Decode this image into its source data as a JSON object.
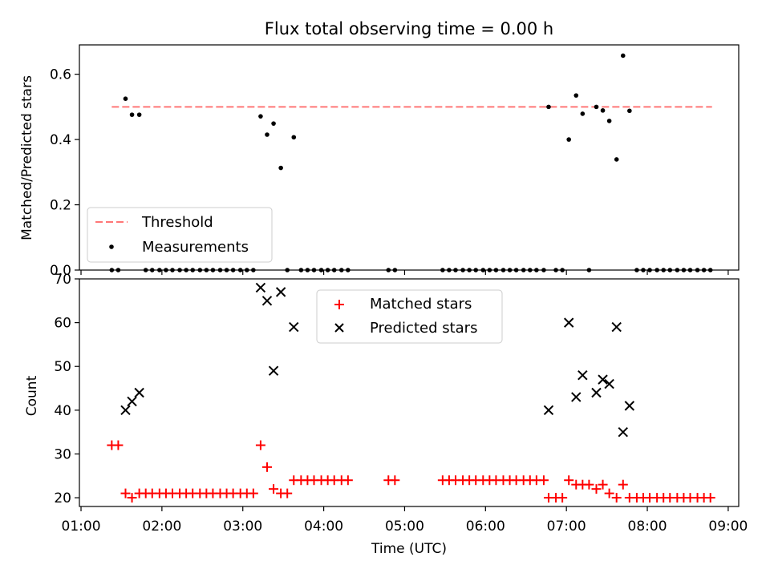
{
  "chart_data": [
    {
      "type": "scatter",
      "title": "Flux total observing time = 0.00 h",
      "ylabel": "Matched/Predicted stars",
      "xlabel": "",
      "xlim_hours": [
        0.98,
        9.13
      ],
      "ylim": [
        0,
        0.69
      ],
      "yticks": [
        0.0,
        0.2,
        0.4,
        0.6
      ],
      "ytick_labels": [
        "0.0",
        "0.2",
        "0.4",
        "0.6"
      ],
      "legend_position": "lower-left",
      "legend": [
        "Threshold",
        "Measurements"
      ],
      "threshold": {
        "name": "Threshold",
        "value": 0.5,
        "x_range_hours": [
          1.38,
          8.8
        ],
        "color": "#ff7777"
      },
      "measurements": {
        "name": "Measurements",
        "color": "#000000",
        "points": [
          [
            1.38,
            0.0
          ],
          [
            1.46,
            0.0
          ],
          [
            1.55,
            0.525
          ],
          [
            1.63,
            0.476
          ],
          [
            1.72,
            0.476
          ],
          [
            1.8,
            0.0
          ],
          [
            1.88,
            0.0
          ],
          [
            1.97,
            0.0
          ],
          [
            2.05,
            0.0
          ],
          [
            2.13,
            0.0
          ],
          [
            2.22,
            0.0
          ],
          [
            2.3,
            0.0
          ],
          [
            2.38,
            0.0
          ],
          [
            2.47,
            0.0
          ],
          [
            2.55,
            0.0
          ],
          [
            2.63,
            0.0
          ],
          [
            2.72,
            0.0
          ],
          [
            2.8,
            0.0
          ],
          [
            2.88,
            0.0
          ],
          [
            2.97,
            0.0
          ],
          [
            3.05,
            0.0
          ],
          [
            3.13,
            0.0
          ],
          [
            3.22,
            0.471
          ],
          [
            3.3,
            0.415
          ],
          [
            3.38,
            0.449
          ],
          [
            3.47,
            0.313
          ],
          [
            3.55,
            0.0
          ],
          [
            3.63,
            0.407
          ],
          [
            3.72,
            0.0
          ],
          [
            3.8,
            0.0
          ],
          [
            3.88,
            0.0
          ],
          [
            3.97,
            0.0
          ],
          [
            4.05,
            0.0
          ],
          [
            4.13,
            0.0
          ],
          [
            4.22,
            0.0
          ],
          [
            4.3,
            0.0
          ],
          [
            4.8,
            0.0
          ],
          [
            4.88,
            0.0
          ],
          [
            5.47,
            0.0
          ],
          [
            5.55,
            0.0
          ],
          [
            5.63,
            0.0
          ],
          [
            5.72,
            0.0
          ],
          [
            5.8,
            0.0
          ],
          [
            5.88,
            0.0
          ],
          [
            5.97,
            0.0
          ],
          [
            6.05,
            0.0
          ],
          [
            6.13,
            0.0
          ],
          [
            6.22,
            0.0
          ],
          [
            6.3,
            0.0
          ],
          [
            6.38,
            0.0
          ],
          [
            6.47,
            0.0
          ],
          [
            6.55,
            0.0
          ],
          [
            6.63,
            0.0
          ],
          [
            6.72,
            0.0
          ],
          [
            6.78,
            0.5
          ],
          [
            6.87,
            0.0
          ],
          [
            6.95,
            0.0
          ],
          [
            7.03,
            0.4
          ],
          [
            7.12,
            0.535
          ],
          [
            7.2,
            0.479
          ],
          [
            7.28,
            0.0
          ],
          [
            7.37,
            0.5
          ],
          [
            7.45,
            0.489
          ],
          [
            7.53,
            0.457
          ],
          [
            7.62,
            0.339
          ],
          [
            7.7,
            0.657
          ],
          [
            7.78,
            0.488
          ],
          [
            7.87,
            0.0
          ],
          [
            7.95,
            0.0
          ],
          [
            8.03,
            0.0
          ],
          [
            8.12,
            0.0
          ],
          [
            8.2,
            0.0
          ],
          [
            8.28,
            0.0
          ],
          [
            8.37,
            0.0
          ],
          [
            8.45,
            0.0
          ],
          [
            8.53,
            0.0
          ],
          [
            8.62,
            0.0
          ],
          [
            8.7,
            0.0
          ],
          [
            8.78,
            0.0
          ]
        ]
      }
    },
    {
      "type": "scatter",
      "title": "",
      "xlabel": "Time (UTC)",
      "ylabel": "Count",
      "xlim_hours": [
        0.98,
        9.13
      ],
      "ylim": [
        18,
        70
      ],
      "yticks": [
        20,
        30,
        40,
        50,
        60,
        70
      ],
      "ytick_labels": [
        "20",
        "30",
        "40",
        "50",
        "60",
        "70"
      ],
      "xticks_hours": [
        1,
        2,
        3,
        4,
        5,
        6,
        7,
        8,
        9
      ],
      "xtick_labels": [
        "01:00",
        "02:00",
        "03:00",
        "04:00",
        "05:00",
        "06:00",
        "07:00",
        "08:00",
        "09:00"
      ],
      "legend_position": "top-center",
      "legend": [
        "Matched stars",
        "Predicted stars"
      ],
      "series": [
        {
          "name": "Matched stars",
          "marker": "plus",
          "color": "#ff0000",
          "points": [
            [
              1.38,
              32
            ],
            [
              1.46,
              32
            ],
            [
              1.55,
              21
            ],
            [
              1.63,
              20
            ],
            [
              1.72,
              21
            ],
            [
              1.8,
              21
            ],
            [
              1.88,
              21
            ],
            [
              1.97,
              21
            ],
            [
              2.05,
              21
            ],
            [
              2.13,
              21
            ],
            [
              2.22,
              21
            ],
            [
              2.3,
              21
            ],
            [
              2.38,
              21
            ],
            [
              2.47,
              21
            ],
            [
              2.55,
              21
            ],
            [
              2.63,
              21
            ],
            [
              2.72,
              21
            ],
            [
              2.8,
              21
            ],
            [
              2.88,
              21
            ],
            [
              2.97,
              21
            ],
            [
              3.05,
              21
            ],
            [
              3.13,
              21
            ],
            [
              3.22,
              32
            ],
            [
              3.3,
              27
            ],
            [
              3.38,
              22
            ],
            [
              3.47,
              21
            ],
            [
              3.55,
              21
            ],
            [
              3.63,
              24
            ],
            [
              3.72,
              24
            ],
            [
              3.8,
              24
            ],
            [
              3.88,
              24
            ],
            [
              3.97,
              24
            ],
            [
              4.05,
              24
            ],
            [
              4.13,
              24
            ],
            [
              4.22,
              24
            ],
            [
              4.3,
              24
            ],
            [
              4.8,
              24
            ],
            [
              4.88,
              24
            ],
            [
              5.47,
              24
            ],
            [
              5.55,
              24
            ],
            [
              5.63,
              24
            ],
            [
              5.72,
              24
            ],
            [
              5.8,
              24
            ],
            [
              5.88,
              24
            ],
            [
              5.97,
              24
            ],
            [
              6.05,
              24
            ],
            [
              6.13,
              24
            ],
            [
              6.22,
              24
            ],
            [
              6.3,
              24
            ],
            [
              6.38,
              24
            ],
            [
              6.47,
              24
            ],
            [
              6.55,
              24
            ],
            [
              6.63,
              24
            ],
            [
              6.72,
              24
            ],
            [
              6.78,
              20
            ],
            [
              6.87,
              20
            ],
            [
              6.95,
              20
            ],
            [
              7.03,
              24
            ],
            [
              7.12,
              23
            ],
            [
              7.2,
              23
            ],
            [
              7.28,
              23
            ],
            [
              7.37,
              22
            ],
            [
              7.45,
              23
            ],
            [
              7.53,
              21
            ],
            [
              7.62,
              20
            ],
            [
              7.7,
              23
            ],
            [
              7.78,
              20
            ],
            [
              7.87,
              20
            ],
            [
              7.95,
              20
            ],
            [
              8.03,
              20
            ],
            [
              8.12,
              20
            ],
            [
              8.2,
              20
            ],
            [
              8.28,
              20
            ],
            [
              8.37,
              20
            ],
            [
              8.45,
              20
            ],
            [
              8.53,
              20
            ],
            [
              8.62,
              20
            ],
            [
              8.7,
              20
            ],
            [
              8.78,
              20
            ]
          ]
        },
        {
          "name": "Predicted stars",
          "marker": "x",
          "color": "#000000",
          "points": [
            [
              1.55,
              40
            ],
            [
              1.63,
              42
            ],
            [
              1.72,
              44
            ],
            [
              3.22,
              68
            ],
            [
              3.3,
              65
            ],
            [
              3.38,
              49
            ],
            [
              3.47,
              67
            ],
            [
              3.63,
              59
            ],
            [
              6.78,
              40
            ],
            [
              7.03,
              60
            ],
            [
              7.12,
              43
            ],
            [
              7.2,
              48
            ],
            [
              7.37,
              44
            ],
            [
              7.45,
              47
            ],
            [
              7.53,
              46
            ],
            [
              7.62,
              59
            ],
            [
              7.7,
              35
            ],
            [
              7.78,
              41
            ]
          ]
        }
      ]
    }
  ]
}
